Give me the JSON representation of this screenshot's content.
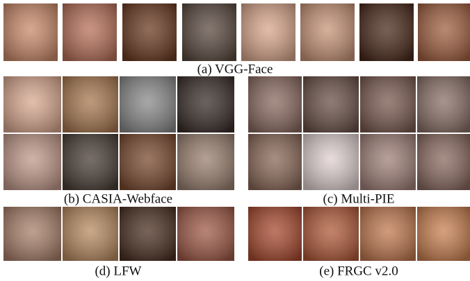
{
  "panels": [
    {
      "caption": "(a) VGG-Face"
    },
    {
      "caption": "(b) CASIA-Webface"
    },
    {
      "caption": "(c) Multi-PIE"
    },
    {
      "caption": "(d) LFW"
    },
    {
      "caption": "(e) FRGC v2.0"
    }
  ]
}
